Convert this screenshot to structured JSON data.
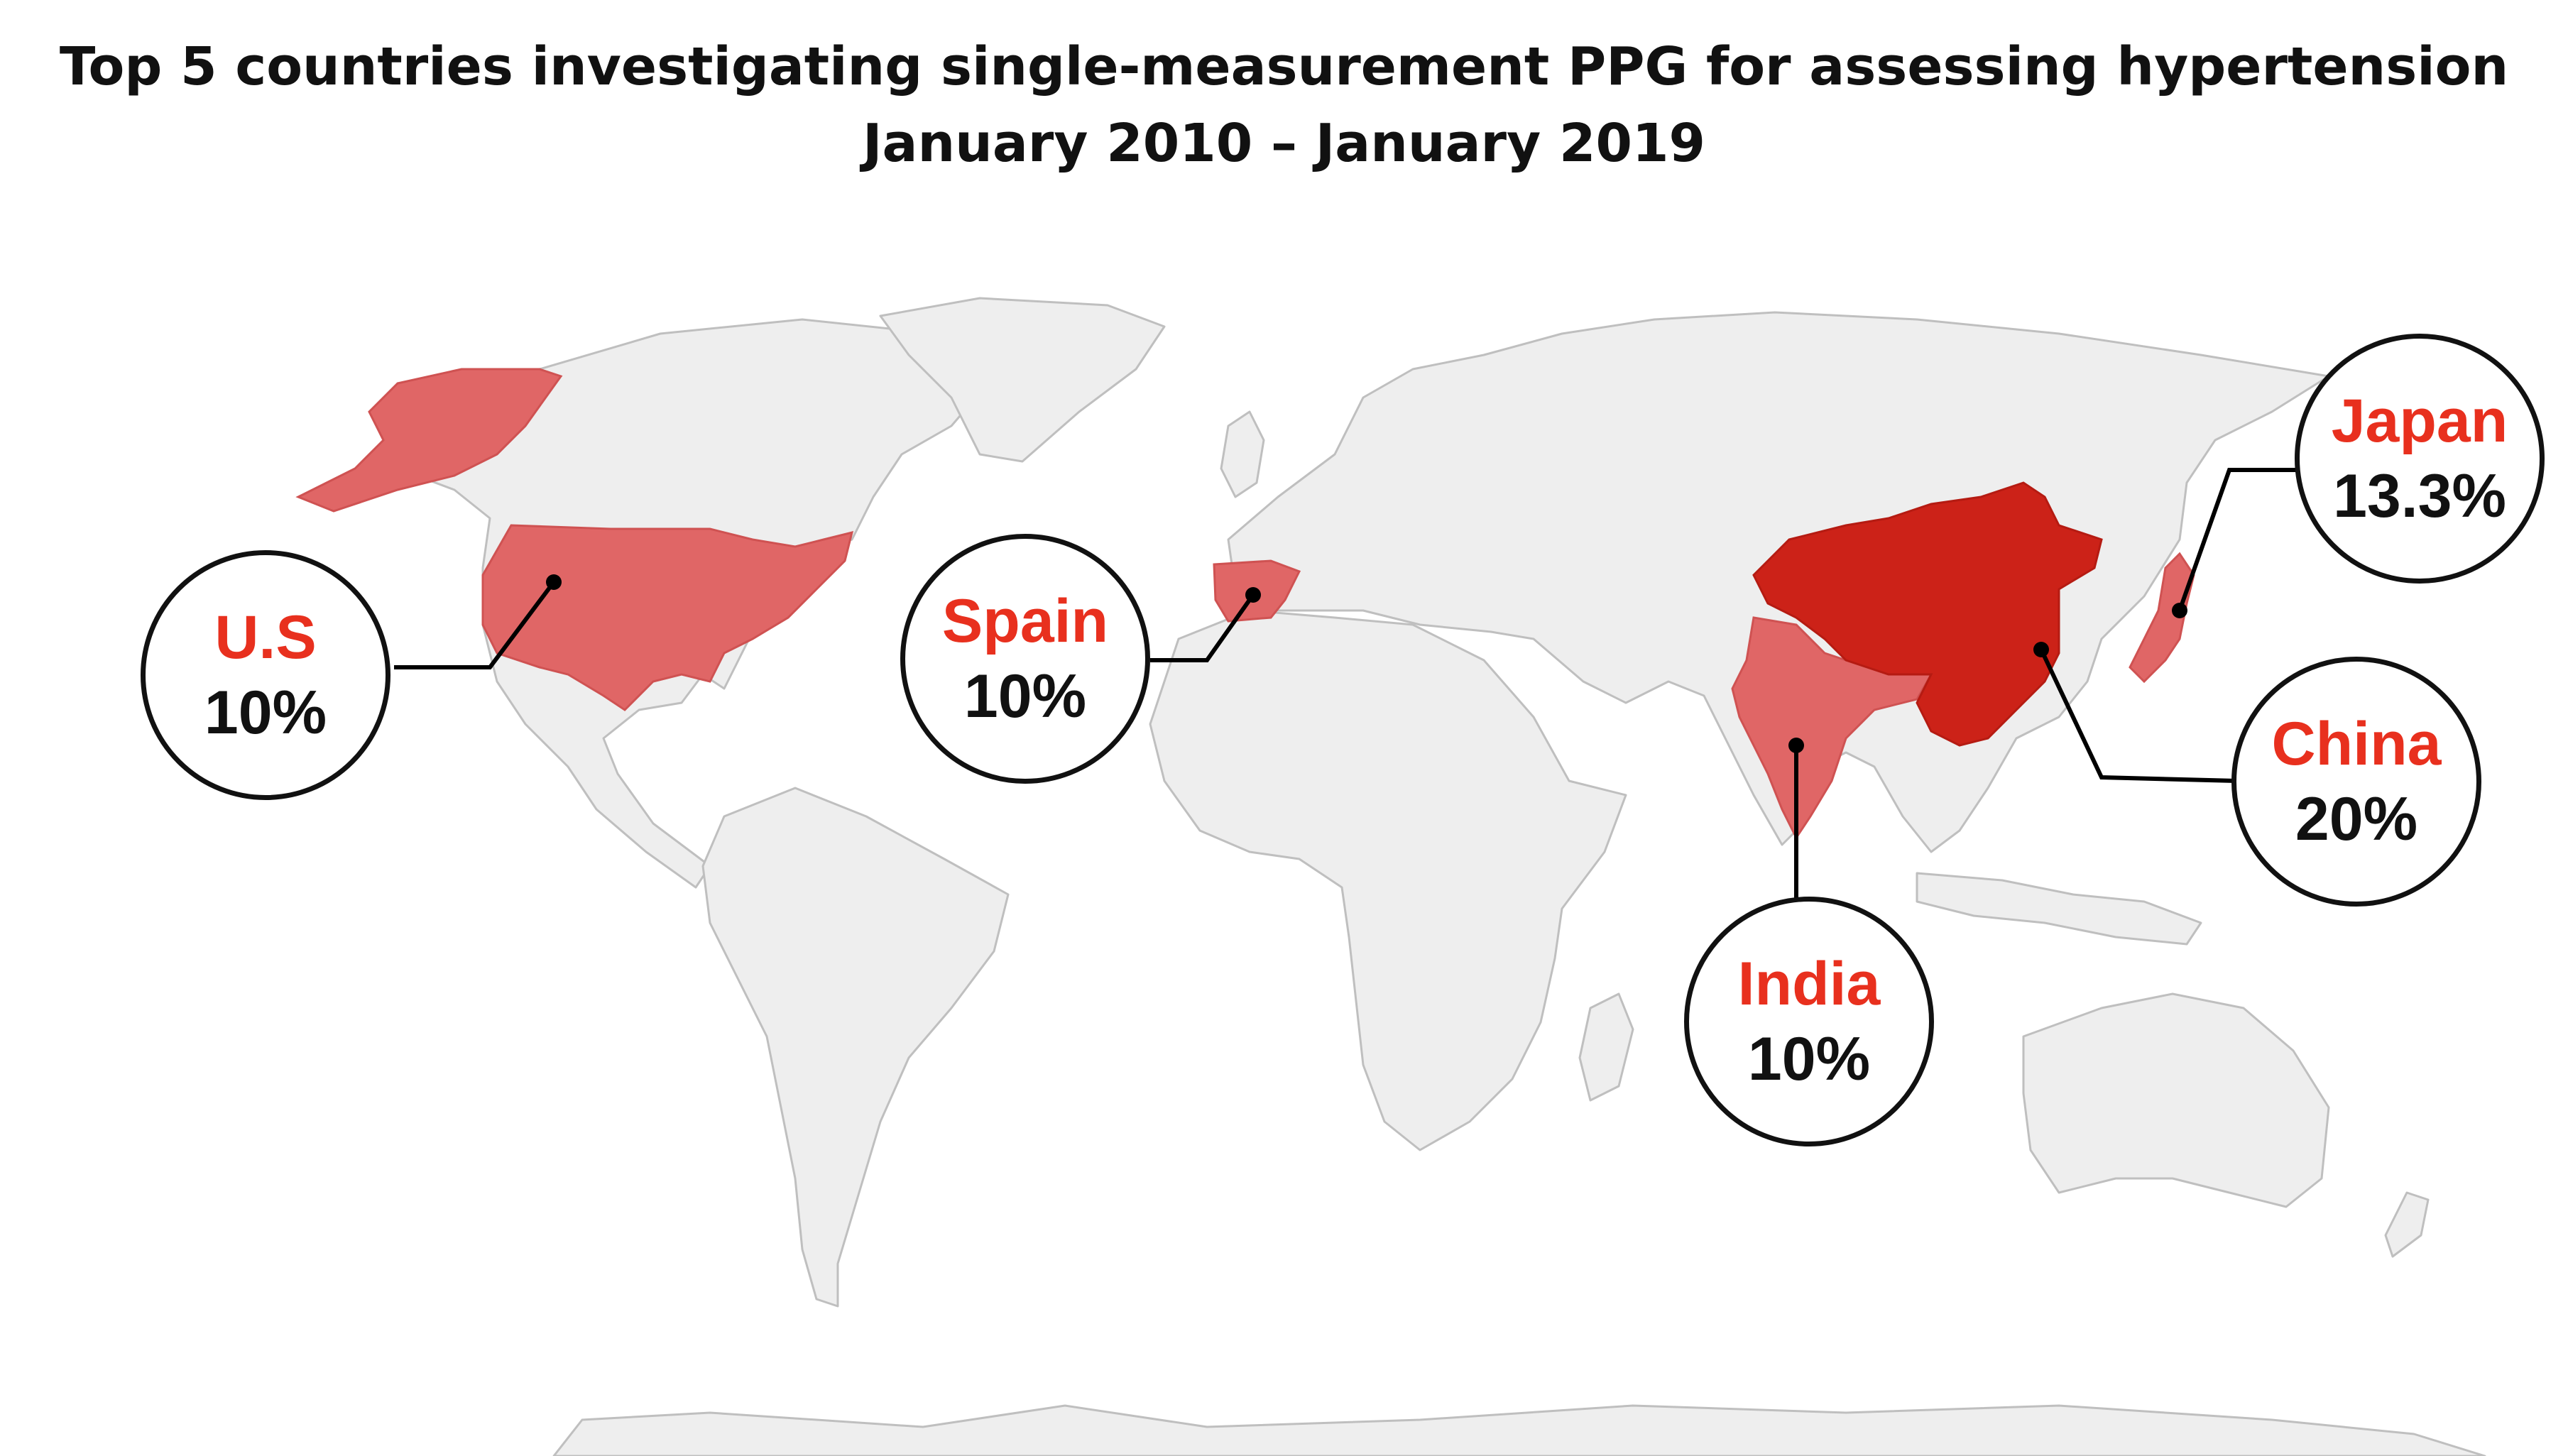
{
  "title": {
    "line1": "Top 5 countries investigating single-measurement PPG for assessing hypertension",
    "line2": "January 2010 – January 2019"
  },
  "colors": {
    "land": "#eeeeee",
    "border": "#bfbfbf",
    "highlight_mid": "#e06666",
    "highlight_top": "#cc2218",
    "label_red": "#e8301e",
    "text_dark": "#111111"
  },
  "countries": [
    {
      "name": "U.S",
      "value": "10%"
    },
    {
      "name": "Spain",
      "value": "10%"
    },
    {
      "name": "India",
      "value": "10%"
    },
    {
      "name": "China",
      "value": "20%"
    },
    {
      "name": "Japan",
      "value": "13.3%"
    }
  ]
}
